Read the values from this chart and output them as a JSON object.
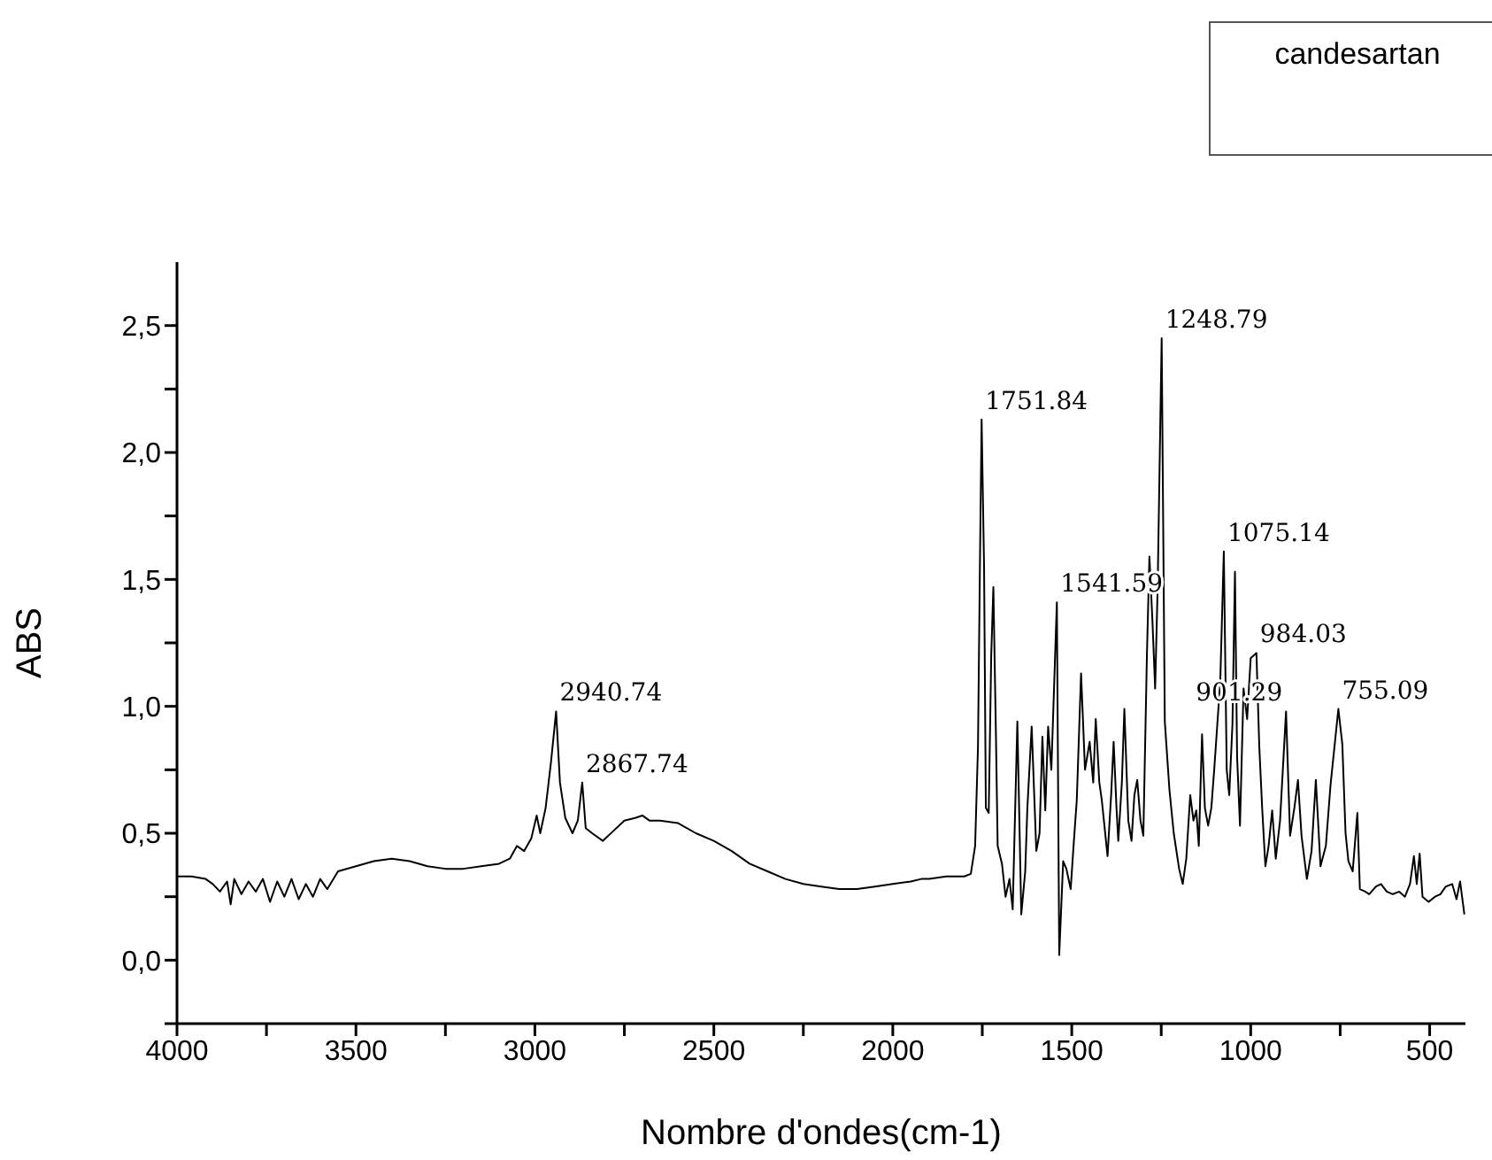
{
  "chart_data": {
    "type": "line",
    "xlabel": "Nombre d'ondes(cm-1)",
    "ylabel": "ABS",
    "legend": "top right",
    "grid": false,
    "marker": "none",
    "line_style": "solid",
    "xlim": [
      4000,
      400
    ],
    "xticks": [
      4000,
      {
        "value": 3750,
        "label": null
      },
      3500,
      {
        "value": 3250,
        "label": null
      },
      3000,
      {
        "value": 2750,
        "label": null
      },
      2500,
      {
        "value": 2250,
        "label": null
      },
      2000,
      {
        "value": 1750,
        "label": null
      },
      1500,
      {
        "value": 1250,
        "label": null
      },
      1000,
      {
        "value": 750,
        "label": null
      },
      500
    ],
    "ylim": [
      -0.25,
      2.75
    ],
    "yticks": [
      {
        "value": -0.25,
        "label": null
      },
      {
        "value": 0,
        "label": "0,0"
      },
      {
        "value": 0.25,
        "label": null
      },
      {
        "value": 0.5,
        "label": "0,5"
      },
      {
        "value": 0.75,
        "label": null
      },
      {
        "value": 1,
        "label": "1,0"
      },
      {
        "value": 1.25,
        "label": null
      },
      {
        "value": 1.5,
        "label": "1,5"
      },
      {
        "value": 1.75,
        "label": null
      },
      {
        "value": 2,
        "label": "2,0"
      },
      {
        "value": 2.25,
        "label": null
      },
      {
        "value": 2.5,
        "label": "2,5"
      }
    ],
    "series": [
      {
        "name": "candesartan",
        "color": "#000000",
        "x": [
          4000,
          3960,
          3920,
          3900,
          3880,
          3860,
          3850,
          3840,
          3820,
          3800,
          3780,
          3760,
          3740,
          3720,
          3700,
          3680,
          3660,
          3640,
          3620,
          3600,
          3580,
          3550,
          3500,
          3450,
          3400,
          3350,
          3300,
          3250,
          3200,
          3150,
          3100,
          3070,
          3050,
          3030,
          3010,
          2995,
          2985,
          2970,
          2955,
          2940.74,
          2930,
          2915,
          2895,
          2880,
          2867.74,
          2858,
          2840,
          2810,
          2780,
          2750,
          2720,
          2700,
          2680,
          2650,
          2600,
          2550,
          2500,
          2450,
          2400,
          2350,
          2300,
          2250,
          2200,
          2150,
          2100,
          2050,
          2000,
          1950,
          1920,
          1898,
          1850,
          1800,
          1782,
          1770,
          1762,
          1757,
          1751.84,
          1745,
          1740,
          1732,
          1725,
          1719,
          1712,
          1707,
          1695,
          1685,
          1674,
          1665,
          1652,
          1641,
          1630,
          1624,
          1612,
          1599,
          1590,
          1582,
          1574,
          1566,
          1557,
          1541.59,
          1535,
          1524,
          1515,
          1503,
          1495,
          1486,
          1474,
          1463,
          1450,
          1440,
          1433,
          1423,
          1416,
          1400,
          1390,
          1383,
          1375,
          1370,
          1360,
          1353,
          1342,
          1333,
          1325,
          1317,
          1308,
          1300,
          1290,
          1283,
          1275,
          1267,
          1260,
          1248.79,
          1240,
          1227,
          1215,
          1200,
          1190,
          1180,
          1169,
          1160,
          1152,
          1145,
          1136,
          1128,
          1119,
          1110,
          1102,
          1085,
          1075.14,
          1067,
          1060,
          1051,
          1044,
          1038,
          1030,
          1020,
          1010,
          1000,
          984.03,
          976,
          968,
          959,
          950,
          940,
          930,
          918,
          901.29,
          890,
          878,
          868,
          858,
          843,
          830,
          818,
          805,
          790,
          777,
          755.09,
          744,
          735,
          727,
          715,
          702,
          695,
          680,
          669,
          650,
          636,
          620,
          603,
          585,
          569,
          555,
          544,
          536,
          528,
          520,
          503,
          485,
          470,
          455,
          437,
          425,
          415,
          403
        ],
        "values": [
          0.33,
          0.33,
          0.32,
          0.3,
          0.27,
          0.31,
          0.22,
          0.32,
          0.26,
          0.31,
          0.27,
          0.32,
          0.23,
          0.31,
          0.25,
          0.32,
          0.24,
          0.3,
          0.25,
          0.32,
          0.28,
          0.35,
          0.37,
          0.39,
          0.4,
          0.39,
          0.37,
          0.36,
          0.36,
          0.37,
          0.38,
          0.4,
          0.45,
          0.43,
          0.48,
          0.57,
          0.5,
          0.6,
          0.78,
          0.98,
          0.7,
          0.56,
          0.5,
          0.55,
          0.7,
          0.52,
          0.5,
          0.47,
          0.51,
          0.55,
          0.56,
          0.57,
          0.55,
          0.55,
          0.54,
          0.5,
          0.47,
          0.43,
          0.38,
          0.35,
          0.32,
          0.3,
          0.29,
          0.28,
          0.28,
          0.29,
          0.3,
          0.31,
          0.32,
          0.32,
          0.33,
          0.33,
          0.34,
          0.45,
          0.84,
          1.5,
          2.13,
          1.55,
          0.6,
          0.58,
          1.2,
          1.47,
          0.9,
          0.45,
          0.38,
          0.25,
          0.32,
          0.2,
          0.94,
          0.18,
          0.35,
          0.6,
          0.92,
          0.43,
          0.5,
          0.88,
          0.59,
          0.92,
          0.75,
          1.41,
          0.02,
          0.39,
          0.36,
          0.28,
          0.45,
          0.63,
          1.13,
          0.75,
          0.86,
          0.7,
          0.95,
          0.7,
          0.63,
          0.41,
          0.65,
          0.86,
          0.6,
          0.47,
          0.7,
          0.99,
          0.55,
          0.47,
          0.65,
          0.71,
          0.55,
          0.49,
          1.2,
          1.59,
          1.35,
          1.07,
          1.47,
          2.45,
          0.94,
          0.67,
          0.5,
          0.36,
          0.3,
          0.4,
          0.65,
          0.55,
          0.59,
          0.45,
          0.89,
          0.6,
          0.53,
          0.6,
          0.75,
          1.1,
          1.61,
          0.75,
          0.65,
          0.93,
          1.53,
          0.8,
          0.53,
          1.07,
          0.95,
          1.19,
          1.21,
          0.84,
          0.6,
          0.37,
          0.45,
          0.59,
          0.4,
          0.55,
          0.98,
          0.49,
          0.6,
          0.71,
          0.49,
          0.32,
          0.43,
          0.71,
          0.37,
          0.45,
          0.69,
          0.99,
          0.85,
          0.5,
          0.39,
          0.35,
          0.58,
          0.28,
          0.27,
          0.26,
          0.29,
          0.3,
          0.27,
          0.26,
          0.27,
          0.25,
          0.3,
          0.41,
          0.3,
          0.42,
          0.25,
          0.23,
          0.25,
          0.26,
          0.29,
          0.3,
          0.24,
          0.31,
          0.18
        ]
      }
    ],
    "annotations": [
      {
        "text": "2940.74",
        "x": 2940.74,
        "y": 0.98
      },
      {
        "text": "2867.74",
        "x": 2867.74,
        "y": 0.7
      },
      {
        "text": "1751.84",
        "x": 1751.84,
        "y": 2.13
      },
      {
        "text": "1541.59",
        "x": 1541.59,
        "y": 1.41
      },
      {
        "text": "1248.79",
        "x": 1248.79,
        "y": 2.45
      },
      {
        "text": "1075.14",
        "x": 1075.14,
        "y": 1.61
      },
      {
        "text": "984.03",
        "x": 984.03,
        "y": 1.21
      },
      {
        "text": "901.29",
        "x": 901.29,
        "y": 0.98
      },
      {
        "text": "755.09",
        "x": 755.09,
        "y": 0.99
      }
    ]
  }
}
